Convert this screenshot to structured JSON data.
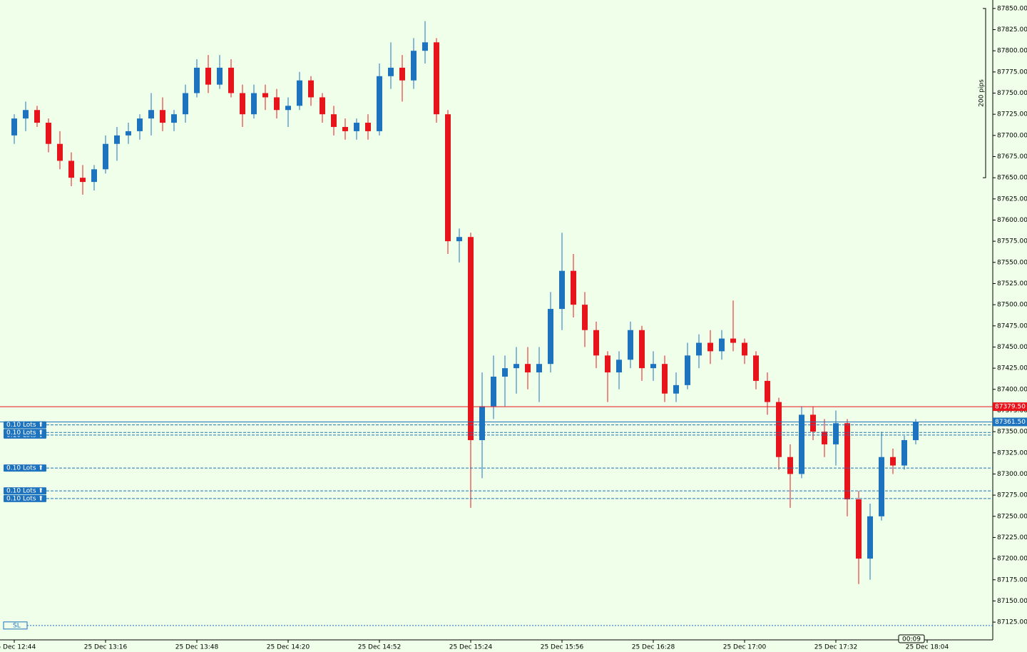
{
  "chart_data": {
    "type": "candlestick",
    "x": [
      "25 Dec 12:44",
      "25 Dec 12:48",
      "25 Dec 12:52",
      "25 Dec 12:56",
      "25 Dec 13:00",
      "25 Dec 13:04",
      "25 Dec 13:08",
      "25 Dec 13:12",
      "25 Dec 13:16",
      "25 Dec 13:20",
      "25 Dec 13:24",
      "25 Dec 13:28",
      "25 Dec 13:32",
      "25 Dec 13:36",
      "25 Dec 13:40",
      "25 Dec 13:44",
      "25 Dec 13:48",
      "25 Dec 13:52",
      "25 Dec 13:56",
      "25 Dec 14:00",
      "25 Dec 14:04",
      "25 Dec 14:08",
      "25 Dec 14:12",
      "25 Dec 14:16",
      "25 Dec 14:20",
      "25 Dec 14:24",
      "25 Dec 14:28",
      "25 Dec 14:32",
      "25 Dec 14:36",
      "25 Dec 14:40",
      "25 Dec 14:44",
      "25 Dec 14:48",
      "25 Dec 14:52",
      "25 Dec 14:56",
      "25 Dec 15:00",
      "25 Dec 15:04",
      "25 Dec 15:08",
      "25 Dec 15:12",
      "25 Dec 15:16",
      "25 Dec 15:20",
      "25 Dec 15:24",
      "25 Dec 15:28",
      "25 Dec 15:32",
      "25 Dec 15:36",
      "25 Dec 15:40",
      "25 Dec 15:44",
      "25 Dec 15:48",
      "25 Dec 15:52",
      "25 Dec 15:56",
      "25 Dec 16:00",
      "25 Dec 16:04",
      "25 Dec 16:08",
      "25 Dec 16:12",
      "25 Dec 16:16",
      "25 Dec 16:20",
      "25 Dec 16:24",
      "25 Dec 16:28",
      "25 Dec 16:32",
      "25 Dec 16:36",
      "25 Dec 16:40",
      "25 Dec 16:44",
      "25 Dec 16:48",
      "25 Dec 16:52",
      "25 Dec 16:56",
      "25 Dec 17:00",
      "25 Dec 17:04",
      "25 Dec 17:08",
      "25 Dec 17:12",
      "25 Dec 17:16",
      "25 Dec 17:20",
      "25 Dec 17:24",
      "25 Dec 17:28",
      "25 Dec 17:32",
      "25 Dec 17:36",
      "25 Dec 17:40",
      "25 Dec 17:44",
      "25 Dec 17:48",
      "25 Dec 17:52",
      "25 Dec 17:56",
      "25 Dec 18:00"
    ],
    "open": [
      87700,
      87720,
      87730,
      87715,
      87690,
      87670,
      87650,
      87645,
      87660,
      87690,
      87700,
      87705,
      87720,
      87730,
      87715,
      87725,
      87750,
      87780,
      87760,
      87780,
      87750,
      87725,
      87750,
      87745,
      87730,
      87735,
      87765,
      87745,
      87725,
      87710,
      87705,
      87715,
      87705,
      87770,
      87780,
      87765,
      87800,
      87810,
      87725,
      87575,
      87580,
      87340,
      87380,
      87415,
      87425,
      87430,
      87420,
      87430,
      87495,
      87540,
      87500,
      87470,
      87440,
      87420,
      87435,
      87470,
      87425,
      87430,
      87395,
      87405,
      87440,
      87455,
      87445,
      87460,
      87455,
      87440,
      87410,
      87385,
      87320,
      87300,
      87370,
      87350,
      87335,
      87360,
      87270,
      87200,
      87250,
      87320,
      87310,
      87340
    ],
    "high": [
      87725,
      87740,
      87735,
      87720,
      87705,
      87680,
      87665,
      87665,
      87700,
      87710,
      87715,
      87725,
      87750,
      87745,
      87730,
      87760,
      87790,
      87795,
      87795,
      87790,
      87760,
      87760,
      87760,
      87755,
      87745,
      87775,
      87770,
      87750,
      87735,
      87720,
      87720,
      87725,
      87785,
      87810,
      87795,
      87815,
      87835,
      87815,
      87730,
      87590,
      87585,
      87420,
      87440,
      87440,
      87450,
      87450,
      87450,
      87515,
      87585,
      87560,
      87515,
      87480,
      87445,
      87445,
      87480,
      87475,
      87445,
      87440,
      87420,
      87455,
      87465,
      87470,
      87470,
      87505,
      87460,
      87445,
      87420,
      87390,
      87335,
      87380,
      87380,
      87365,
      87375,
      87365,
      87280,
      87265,
      87350,
      87330,
      87345,
      87365
    ],
    "low": [
      87690,
      87705,
      87710,
      87680,
      87660,
      87640,
      87630,
      87635,
      87655,
      87670,
      87690,
      87695,
      87700,
      87705,
      87705,
      87715,
      87745,
      87750,
      87755,
      87745,
      87710,
      87720,
      87730,
      87720,
      87710,
      87730,
      87735,
      87715,
      87700,
      87695,
      87695,
      87695,
      87700,
      87755,
      87740,
      87755,
      87785,
      87715,
      87560,
      87550,
      87260,
      87295,
      87365,
      87380,
      87395,
      87400,
      87385,
      87420,
      87470,
      87485,
      87450,
      87425,
      87385,
      87400,
      87425,
      87410,
      87410,
      87385,
      87385,
      87400,
      87425,
      87430,
      87435,
      87445,
      87430,
      87400,
      87370,
      87305,
      87260,
      87295,
      87340,
      87320,
      87310,
      87250,
      87170,
      87175,
      87245,
      87300,
      87305,
      87335
    ],
    "close": [
      87720,
      87730,
      87715,
      87690,
      87670,
      87650,
      87645,
      87660,
      87690,
      87700,
      87705,
      87720,
      87730,
      87715,
      87725,
      87750,
      87780,
      87760,
      87780,
      87750,
      87725,
      87750,
      87745,
      87730,
      87735,
      87765,
      87745,
      87725,
      87710,
      87705,
      87715,
      87705,
      87770,
      87780,
      87765,
      87800,
      87810,
      87725,
      87575,
      87580,
      87340,
      87380,
      87415,
      87425,
      87430,
      87420,
      87430,
      87495,
      87540,
      87500,
      87470,
      87440,
      87420,
      87435,
      87470,
      87425,
      87430,
      87395,
      87405,
      87440,
      87455,
      87445,
      87460,
      87455,
      87440,
      87410,
      87385,
      87320,
      87300,
      87370,
      87350,
      87335,
      87360,
      87270,
      87200,
      87250,
      87320,
      87310,
      87340,
      87361.5
    ],
    "up_color": "#1e73be",
    "down_color": "#e8141c",
    "xlim": [
      "25 Dec 12:39",
      "25 Dec 18:27"
    ],
    "xticks": [
      "25 Dec 12:44",
      "25 Dec 13:16",
      "25 Dec 13:48",
      "25 Dec 14:20",
      "25 Dec 14:52",
      "25 Dec 15:24",
      "25 Dec 15:56",
      "25 Dec 16:28",
      "25 Dec 17:00",
      "25 Dec 17:32",
      "25 Dec 18:04"
    ],
    "ylim": [
      87104,
      87860
    ],
    "yticks": [
      {
        "value": 87850,
        "label": "87850.00"
      },
      {
        "value": 87825,
        "label": "87825.00"
      },
      {
        "value": 87800,
        "label": "87800.00"
      },
      {
        "value": 87775,
        "label": "87775.00"
      },
      {
        "value": 87750,
        "label": "87750.00"
      },
      {
        "value": 87725,
        "label": "87725.00"
      },
      {
        "value": 87700,
        "label": "87700.00"
      },
      {
        "value": 87675,
        "label": "87675.00"
      },
      {
        "value": 87650,
        "label": "87650.00"
      },
      {
        "value": 87625,
        "label": "87625.00"
      },
      {
        "value": 87600,
        "label": "87600.00"
      },
      {
        "value": 87575,
        "label": "87575.00"
      },
      {
        "value": 87550,
        "label": "87550.00"
      },
      {
        "value": 87525,
        "label": "87525.00"
      },
      {
        "value": 87500,
        "label": "87500.00"
      },
      {
        "value": 87475,
        "label": "87475.00"
      },
      {
        "value": 87450,
        "label": "87450.00"
      },
      {
        "value": 87425,
        "label": "87425.00"
      },
      {
        "value": 87400,
        "label": "87400.00"
      },
      {
        "value": 87375,
        "label": "87375.00"
      },
      {
        "value": 87350,
        "label": "87350.00"
      },
      {
        "value": 87325,
        "label": "87325.00"
      },
      {
        "value": 87300,
        "label": "87300.00"
      },
      {
        "value": 87275,
        "label": "87275.00"
      },
      {
        "value": 87250,
        "label": "87250.00"
      },
      {
        "value": 87225,
        "label": "87225.00"
      },
      {
        "value": 87200,
        "label": "87200.00"
      },
      {
        "value": 87175,
        "label": "87175.00"
      },
      {
        "value": 87150,
        "label": "87150.00"
      },
      {
        "value": 87125,
        "label": "87125.00"
      }
    ],
    "price_lines": [
      {
        "value": 87379.5,
        "label": "87379.50",
        "color": "#e8141c"
      },
      {
        "value": 87361.5,
        "label": "87361.50",
        "color": "#1e73be"
      }
    ],
    "orders": [
      {
        "label": "0.10 Lots ⬆",
        "price": 87358
      },
      {
        "label": "0.10 Lots ⬆",
        "price": 87346
      },
      {
        "label": "0.10 Lots ⬆",
        "price": 87349
      },
      {
        "label": "0.10 Lots ⬆",
        "price": 87307
      },
      {
        "label": "0.10 Lots ⬆",
        "price": 87280
      },
      {
        "label": "0.10 Lots ⬆",
        "price": 87271
      }
    ],
    "stop_loss": {
      "label": "SL",
      "price": 87121
    },
    "pips_ruler": {
      "label": "200 pips",
      "from": 87850,
      "to": 87650
    },
    "timer": "00:09"
  }
}
